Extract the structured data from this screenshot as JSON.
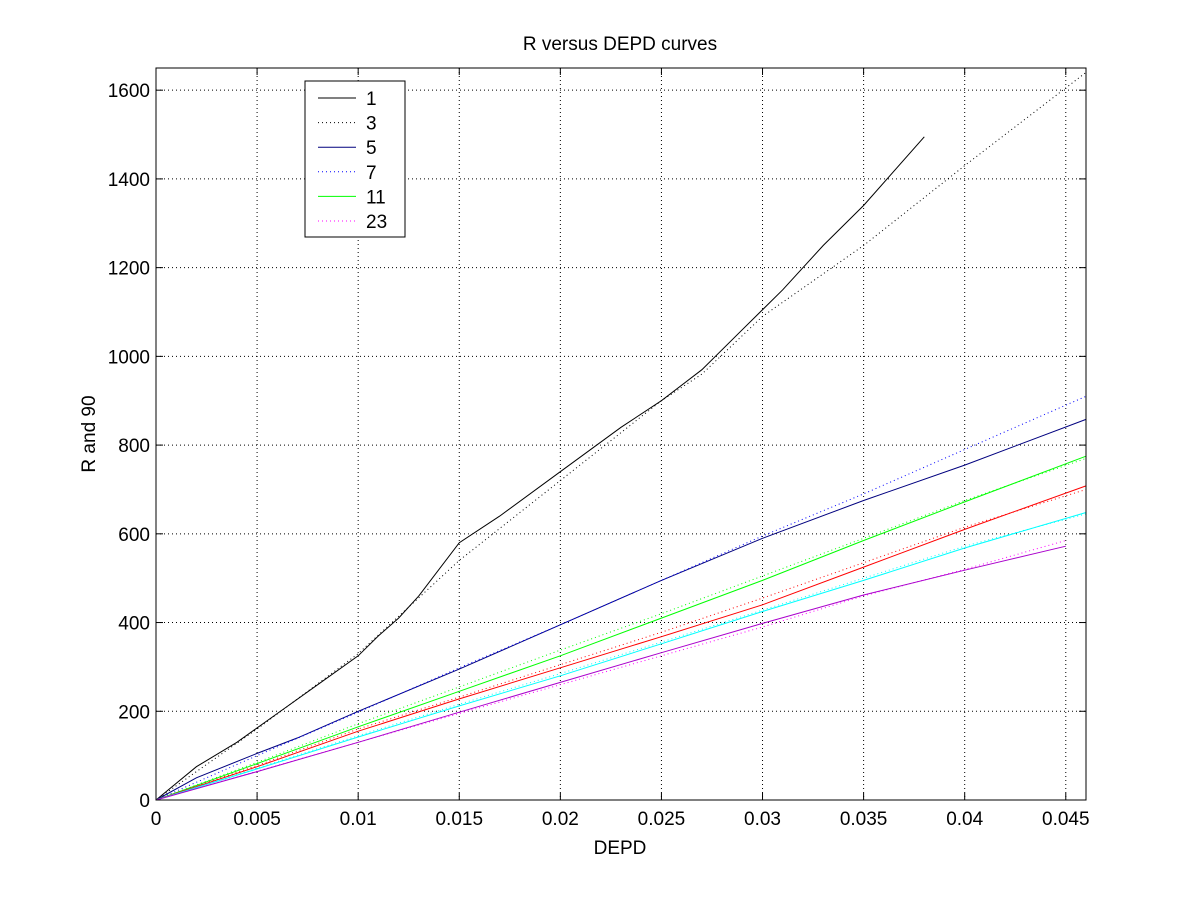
{
  "chart_data": {
    "type": "line",
    "title": "R versus DEPD curves",
    "xlabel": "DEPD",
    "ylabel": "R and 90",
    "xlim": [
      0,
      0.046
    ],
    "ylim": [
      0,
      1650
    ],
    "xticks": [
      0,
      0.005,
      0.01,
      0.015,
      0.02,
      0.025,
      0.03,
      0.035,
      0.04,
      0.045
    ],
    "xtick_labels": [
      "0",
      "0.005",
      "0.01",
      "0.015",
      "0.02",
      "0.025",
      "0.03",
      "0.035",
      "0.04",
      "0.045"
    ],
    "yticks": [
      0,
      200,
      400,
      600,
      800,
      1000,
      1200,
      1400,
      1600
    ],
    "ytick_labels": [
      "0",
      "200",
      "400",
      "600",
      "800",
      "1000",
      "1200",
      "1400",
      "1600"
    ],
    "grid": true,
    "legend_position": "top-left",
    "series": [
      {
        "name": "1",
        "color": "#000000",
        "style": "solid",
        "in_legend": true,
        "x": [
          0,
          0.002,
          0.004,
          0.006,
          0.008,
          0.01,
          0.011,
          0.012,
          0.013,
          0.015,
          0.017,
          0.02,
          0.023,
          0.025,
          0.027,
          0.029,
          0.031,
          0.033,
          0.035,
          0.038
        ],
        "y": [
          0,
          75,
          130,
          195,
          260,
          325,
          370,
          410,
          460,
          580,
          640,
          740,
          840,
          900,
          970,
          1060,
          1150,
          1250,
          1340,
          1495
        ]
      },
      {
        "name": "3",
        "color": "#000000",
        "style": "dotted",
        "in_legend": true,
        "x": [
          0,
          0.005,
          0.01,
          0.015,
          0.02,
          0.025,
          0.027,
          0.03,
          0.035,
          0.04,
          0.046
        ],
        "y": [
          0,
          160,
          330,
          540,
          720,
          900,
          960,
          1090,
          1250,
          1430,
          1640
        ]
      },
      {
        "name": "5",
        "color": "#00007f",
        "style": "solid",
        "in_legend": true,
        "x": [
          0,
          0.002,
          0.005,
          0.007,
          0.01,
          0.015,
          0.02,
          0.025,
          0.03,
          0.035,
          0.04,
          0.046
        ],
        "y": [
          0,
          50,
          105,
          140,
          200,
          295,
          395,
          495,
          590,
          675,
          755,
          858
        ]
      },
      {
        "name": "7",
        "color": "#0000ff",
        "style": "dotted",
        "in_legend": true,
        "x": [
          0,
          0.005,
          0.01,
          0.015,
          0.02,
          0.025,
          0.03,
          0.035,
          0.04,
          0.046
        ],
        "y": [
          0,
          100,
          198,
          298,
          395,
          495,
          595,
          690,
          790,
          910
        ]
      },
      {
        "name": "11",
        "color": "#00ff00",
        "style": "solid",
        "in_legend": true,
        "x": [
          0,
          0.005,
          0.01,
          0.015,
          0.02,
          0.025,
          0.03,
          0.035,
          0.04,
          0.046
        ],
        "y": [
          0,
          82,
          165,
          245,
          325,
          410,
          495,
          585,
          672,
          775
        ]
      },
      {
        "name": "23",
        "color": "#ff00ff",
        "style": "dotted",
        "in_legend": true,
        "x": [
          0,
          0.005,
          0.01,
          0.015,
          0.02,
          0.025,
          0.03,
          0.035,
          0.04,
          0.045
        ],
        "y": [
          0,
          65,
          130,
          195,
          260,
          325,
          390,
          460,
          520,
          585
        ]
      },
      {
        "name": "",
        "color": "#00ff00",
        "style": "dotted",
        "in_legend": false,
        "x": [
          0,
          0.005,
          0.01,
          0.015,
          0.02,
          0.025,
          0.03,
          0.035,
          0.04,
          0.046
        ],
        "y": [
          0,
          85,
          172,
          255,
          338,
          420,
          505,
          590,
          675,
          770
        ]
      },
      {
        "name": "",
        "color": "#ff0000",
        "style": "solid",
        "in_legend": false,
        "x": [
          0,
          0.005,
          0.01,
          0.015,
          0.02,
          0.025,
          0.03,
          0.035,
          0.04,
          0.046
        ],
        "y": [
          0,
          75,
          155,
          228,
          298,
          368,
          440,
          525,
          610,
          708
        ]
      },
      {
        "name": "",
        "color": "#ff0000",
        "style": "dotted",
        "in_legend": false,
        "x": [
          0,
          0.005,
          0.01,
          0.015,
          0.02,
          0.025,
          0.03,
          0.035,
          0.04,
          0.046
        ],
        "y": [
          0,
          78,
          160,
          232,
          305,
          378,
          455,
          535,
          615,
          700
        ]
      },
      {
        "name": "",
        "color": "#00ffff",
        "style": "solid",
        "in_legend": false,
        "x": [
          0,
          0.005,
          0.01,
          0.015,
          0.02,
          0.025,
          0.03,
          0.035,
          0.04,
          0.046
        ],
        "y": [
          0,
          70,
          142,
          212,
          280,
          352,
          425,
          495,
          568,
          648
        ]
      },
      {
        "name": "",
        "color": "#00ffff",
        "style": "dotted",
        "in_legend": false,
        "x": [
          0,
          0.005,
          0.01,
          0.015,
          0.02,
          0.025,
          0.03,
          0.035,
          0.04,
          0.046
        ],
        "y": [
          0,
          72,
          145,
          216,
          285,
          356,
          428,
          500,
          572,
          645
        ]
      },
      {
        "name": "",
        "color": "#aa00cc",
        "style": "solid",
        "in_legend": false,
        "x": [
          0,
          0.005,
          0.01,
          0.015,
          0.02,
          0.025,
          0.03,
          0.035,
          0.04,
          0.045
        ],
        "y": [
          0,
          64,
          130,
          198,
          265,
          332,
          398,
          462,
          518,
          572
        ]
      }
    ]
  }
}
